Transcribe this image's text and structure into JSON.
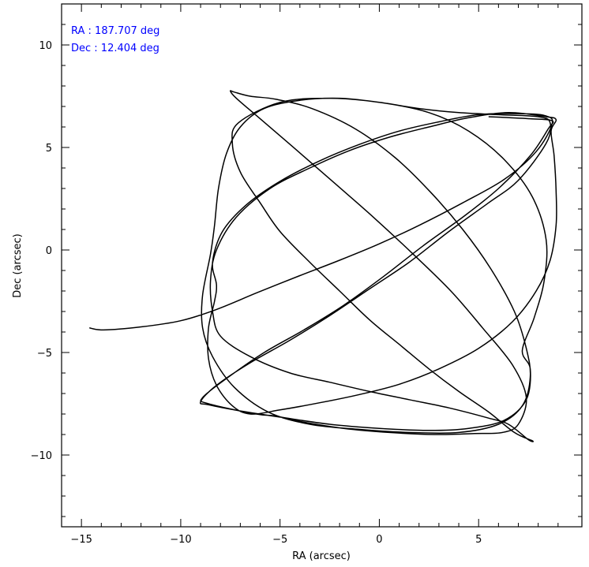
{
  "chart_data": {
    "type": "line",
    "title": "",
    "xlabel": "RA (arcsec)",
    "ylabel": "Dec (arcsec)",
    "xlim": [
      -16,
      10.2
    ],
    "ylim": [
      -13.5,
      12
    ],
    "x_ticks": [
      {
        "value": -15,
        "label": "−15"
      },
      {
        "value": -10,
        "label": "−10"
      },
      {
        "value": -5,
        "label": "−5"
      },
      {
        "value": 0,
        "label": "0"
      },
      {
        "value": 5,
        "label": "5"
      }
    ],
    "y_ticks": [
      {
        "value": 10,
        "label": "10"
      },
      {
        "value": 5,
        "label": "5"
      },
      {
        "value": 0,
        "label": "0"
      },
      {
        "value": -5,
        "label": "−5"
      },
      {
        "value": -10,
        "label": "−10"
      }
    ],
    "grid": false,
    "annotations": [
      "RA : 187.707 deg",
      "Dec : 12.404 deg"
    ],
    "annotation_color": "#0000ff",
    "line_color": "#000000",
    "series": [
      {
        "points": [
          [
            -14.6,
            -3.8
          ],
          [
            -13.9,
            -3.9
          ],
          [
            -12.0,
            -3.75
          ],
          [
            -10.0,
            -3.45
          ],
          [
            -8.2,
            -2.9
          ],
          [
            -6.2,
            -2.1
          ],
          [
            -4.0,
            -1.25
          ],
          [
            -2.0,
            -0.5
          ],
          [
            0.0,
            0.3
          ],
          [
            2.0,
            1.2
          ],
          [
            4.2,
            2.3
          ],
          [
            6.3,
            3.45
          ],
          [
            7.9,
            4.8
          ],
          [
            8.7,
            6.15
          ],
          [
            8.35,
            6.55
          ],
          [
            7.0,
            6.65
          ],
          [
            5.0,
            6.6
          ],
          [
            3.0,
            6.25
          ],
          [
            1.0,
            5.8
          ],
          [
            -1.0,
            5.15
          ],
          [
            -3.0,
            4.35
          ],
          [
            -5.0,
            3.35
          ],
          [
            -6.7,
            2.2
          ],
          [
            -7.9,
            0.9
          ],
          [
            -8.4,
            -0.6
          ],
          [
            -8.2,
            -1.7
          ],
          [
            -8.3,
            -2.5
          ],
          [
            -8.6,
            -3.8
          ],
          [
            -8.6,
            -5.3
          ],
          [
            -8.2,
            -6.6
          ],
          [
            -7.4,
            -7.6
          ],
          [
            -6.5,
            -8.0
          ],
          [
            -5.0,
            -7.8
          ],
          [
            -3.0,
            -7.45
          ],
          [
            -1.0,
            -7.05
          ],
          [
            1.0,
            -6.55
          ],
          [
            3.0,
            -5.8
          ],
          [
            5.0,
            -4.8
          ],
          [
            6.7,
            -3.5
          ],
          [
            7.9,
            -2.0
          ],
          [
            8.6,
            -0.5
          ],
          [
            8.9,
            1.2
          ],
          [
            8.9,
            2.9
          ],
          [
            8.8,
            4.6
          ],
          [
            8.65,
            5.8
          ],
          [
            8.9,
            6.35
          ],
          [
            8.4,
            6.5
          ],
          [
            6.5,
            6.7
          ],
          [
            4.5,
            6.45
          ],
          [
            2.5,
            6.0
          ],
          [
            0.5,
            5.5
          ],
          [
            -1.5,
            4.85
          ],
          [
            -3.5,
            4.0
          ],
          [
            -5.5,
            3.0
          ],
          [
            -7.2,
            1.6
          ],
          [
            -8.2,
            0.0
          ],
          [
            -8.5,
            -1.5
          ],
          [
            -8.4,
            -3.0
          ],
          [
            -8.0,
            -4.2
          ],
          [
            -6.5,
            -5.2
          ],
          [
            -4.5,
            -6.0
          ],
          [
            -2.5,
            -6.45
          ],
          [
            -0.5,
            -6.9
          ],
          [
            1.5,
            -7.3
          ],
          [
            3.5,
            -7.7
          ],
          [
            5.5,
            -8.2
          ],
          [
            6.5,
            -8.5
          ],
          [
            7.5,
            -9.25
          ],
          [
            7.7,
            -9.3
          ],
          [
            6.8,
            -8.9
          ],
          [
            5.5,
            -7.9
          ],
          [
            4.0,
            -6.9
          ],
          [
            2.5,
            -5.8
          ],
          [
            1.0,
            -4.6
          ],
          [
            -0.5,
            -3.4
          ],
          [
            -2.0,
            -2.0
          ],
          [
            -3.5,
            -0.6
          ],
          [
            -5.0,
            0.9
          ],
          [
            -6.0,
            2.3
          ],
          [
            -7.0,
            3.8
          ],
          [
            -7.4,
            5.2
          ],
          [
            -7.1,
            6.2
          ],
          [
            -5.0,
            7.2
          ],
          [
            -2.5,
            7.4
          ],
          [
            0.0,
            7.2
          ],
          [
            2.5,
            6.7
          ],
          [
            4.5,
            5.8
          ],
          [
            6.3,
            4.4
          ],
          [
            7.7,
            2.6
          ],
          [
            8.4,
            0.5
          ],
          [
            8.3,
            -1.5
          ],
          [
            7.8,
            -3.3
          ],
          [
            7.2,
            -4.9
          ],
          [
            7.6,
            -5.8
          ],
          [
            7.4,
            -7.3
          ],
          [
            6.3,
            -8.3
          ],
          [
            4.5,
            -8.7
          ],
          [
            2.5,
            -8.8
          ],
          [
            0.0,
            -8.7
          ],
          [
            -2.5,
            -8.5
          ],
          [
            -5.0,
            -8.15
          ],
          [
            -7.0,
            -7.85
          ],
          [
            -8.6,
            -7.55
          ],
          [
            -9.0,
            -7.4
          ],
          [
            -8.2,
            -6.6
          ],
          [
            -6.5,
            -5.5
          ],
          [
            -4.5,
            -4.4
          ],
          [
            -2.5,
            -3.2
          ],
          [
            -0.5,
            -1.9
          ],
          [
            1.5,
            -0.6
          ],
          [
            3.5,
            0.9
          ],
          [
            5.5,
            2.3
          ],
          [
            7.0,
            3.4
          ],
          [
            8.4,
            5.2
          ],
          [
            8.6,
            6.2
          ],
          [
            8.0,
            6.5
          ],
          [
            6.0,
            6.6
          ],
          [
            4.0,
            6.7
          ],
          [
            2.0,
            6.9
          ],
          [
            0.0,
            7.2
          ],
          [
            -2.0,
            7.4
          ],
          [
            -4.0,
            7.3
          ],
          [
            -5.8,
            6.9
          ],
          [
            -7.0,
            6.0
          ],
          [
            -7.7,
            4.7
          ],
          [
            -8.1,
            3.0
          ],
          [
            -8.3,
            1.2
          ],
          [
            -8.5,
            -0.2
          ],
          [
            -8.9,
            -2.2
          ],
          [
            -8.9,
            -3.8
          ],
          [
            -8.4,
            -5.2
          ],
          [
            -7.3,
            -6.7
          ],
          [
            -5.6,
            -7.9
          ],
          [
            -3.5,
            -8.5
          ],
          [
            -1.0,
            -8.75
          ],
          [
            1.5,
            -8.9
          ],
          [
            4.0,
            -8.9
          ],
          [
            6.0,
            -8.5
          ],
          [
            7.2,
            -7.6
          ],
          [
            7.6,
            -6.2
          ],
          [
            7.4,
            -4.8
          ],
          [
            6.8,
            -3.0
          ],
          [
            5.6,
            -0.9
          ],
          [
            4.2,
            1.0
          ],
          [
            2.6,
            2.8
          ],
          [
            0.8,
            4.5
          ],
          [
            -1.2,
            5.9
          ],
          [
            -3.4,
            6.9
          ],
          [
            -5.2,
            7.35
          ],
          [
            -6.5,
            7.5
          ],
          [
            -7.3,
            7.7
          ],
          [
            -7.5,
            7.75
          ],
          [
            -7.2,
            7.4
          ],
          [
            -6.0,
            6.4
          ],
          [
            -4.2,
            4.9
          ],
          [
            -2.3,
            3.3
          ],
          [
            -0.3,
            1.6
          ],
          [
            1.7,
            -0.2
          ],
          [
            3.6,
            -2.0
          ],
          [
            5.2,
            -3.8
          ],
          [
            6.7,
            -5.6
          ],
          [
            7.4,
            -7.2
          ],
          [
            7.0,
            -8.5
          ],
          [
            6.2,
            -8.9
          ],
          [
            4.8,
            -8.95
          ],
          [
            2.8,
            -9.0
          ],
          [
            0.5,
            -8.9
          ],
          [
            -1.8,
            -8.7
          ],
          [
            -3.8,
            -8.4
          ],
          [
            -5.2,
            -8.1
          ],
          [
            -6.2,
            -8.0
          ],
          [
            -8.6,
            -7.5
          ],
          [
            -8.9,
            -7.2
          ],
          [
            -7.6,
            -6.2
          ],
          [
            -5.8,
            -5.0
          ],
          [
            -3.8,
            -3.9
          ],
          [
            -1.8,
            -2.7
          ],
          [
            0.2,
            -1.3
          ],
          [
            2.2,
            0.2
          ],
          [
            4.2,
            1.6
          ],
          [
            6.0,
            3.0
          ],
          [
            7.6,
            4.6
          ],
          [
            8.5,
            5.9
          ],
          [
            8.7,
            6.3
          ],
          [
            7.6,
            6.4
          ],
          [
            5.5,
            6.5
          ]
        ]
      }
    ]
  }
}
